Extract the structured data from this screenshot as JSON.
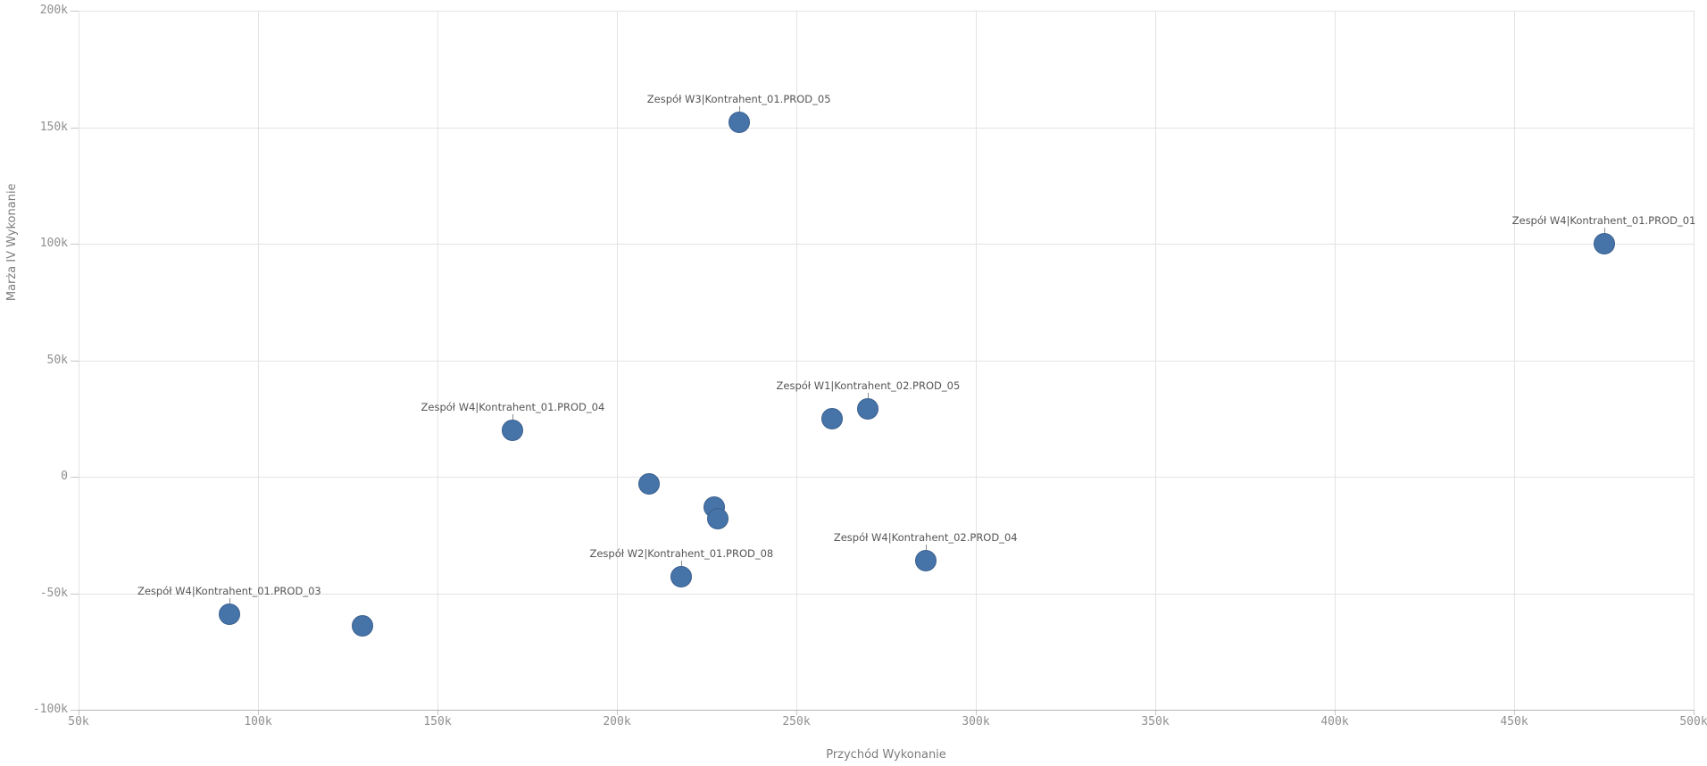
{
  "chart_data": {
    "type": "scatter",
    "title": "",
    "xlabel": "Przychód Wykonanie",
    "ylabel": "Marża IV Wykonanie",
    "xlim": [
      50000,
      500000
    ],
    "ylim": [
      -100000,
      200000
    ],
    "grid": true,
    "legend": "none",
    "x_ticks": [
      {
        "value": 50000,
        "label": "50k"
      },
      {
        "value": 100000,
        "label": "100k"
      },
      {
        "value": 150000,
        "label": "150k"
      },
      {
        "value": 200000,
        "label": "200k"
      },
      {
        "value": 250000,
        "label": "250k"
      },
      {
        "value": 300000,
        "label": "300k"
      },
      {
        "value": 350000,
        "label": "350k"
      },
      {
        "value": 400000,
        "label": "400k"
      },
      {
        "value": 450000,
        "label": "450k"
      },
      {
        "value": 500000,
        "label": "500k"
      }
    ],
    "y_ticks": [
      {
        "value": 200000,
        "label": "200k"
      },
      {
        "value": 150000,
        "label": "150k"
      },
      {
        "value": 100000,
        "label": "100k"
      },
      {
        "value": 50000,
        "label": "50k"
      },
      {
        "value": 0,
        "label": "0"
      },
      {
        "value": -50000,
        "label": "-50k"
      },
      {
        "value": -100000,
        "label": "-100k"
      }
    ],
    "points": [
      {
        "label": "Zespół W3|Kontrahent_01.PROD_05",
        "x": 234000,
        "y": 152000
      },
      {
        "label": "Zespół W4|Kontrahent_01.PROD_01",
        "x": 475000,
        "y": 100000
      },
      {
        "label": null,
        "x": 260000,
        "y": 25000
      },
      {
        "label": "Zespół W1|Kontrahent_02.PROD_05",
        "x": 270000,
        "y": 29000
      },
      {
        "label": "Zespół W4|Kontrahent_01.PROD_04",
        "x": 171000,
        "y": 20000
      },
      {
        "label": null,
        "x": 209000,
        "y": -3000
      },
      {
        "label": null,
        "x": 227000,
        "y": -13000
      },
      {
        "label": null,
        "x": 228000,
        "y": -18000
      },
      {
        "label": "Zespół W2|Kontrahent_01.PROD_08",
        "x": 218000,
        "y": -43000
      },
      {
        "label": "Zespół W4|Kontrahent_02.PROD_04",
        "x": 286000,
        "y": -36000
      },
      {
        "label": "Zespół W4|Kontrahent_01.PROD_03",
        "x": 92000,
        "y": -59000
      },
      {
        "label": null,
        "x": 129000,
        "y": -64000
      }
    ],
    "point_color": "#4674a9",
    "point_border_color": "#3a5f8f"
  },
  "colors": {
    "background": "#ffffff",
    "gridline": "#e3e3e3",
    "axis_line": "#b6b6b6",
    "tick_mark": "#c6c6c6",
    "tick_label": "#8f8f8f",
    "axis_title": "#7c7c7c",
    "point_label": "#555555"
  }
}
